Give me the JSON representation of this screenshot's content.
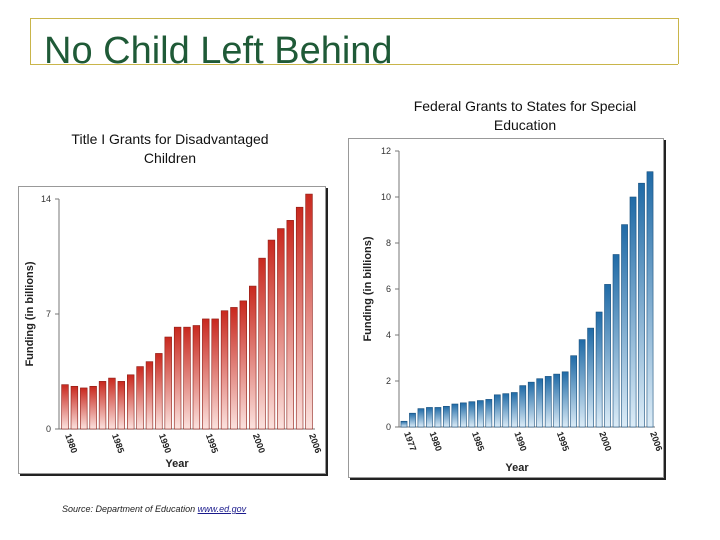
{
  "slide": {
    "title": "No Child Left Behind",
    "source_prefix": "Source: Department of Education",
    "source_link": "www.ed.gov"
  },
  "colors": {
    "title": "#1f5a37",
    "rule": "#c9b54a",
    "red_bar": "#c0392b",
    "blue_bar": "#2a78b8"
  },
  "chart_data": [
    {
      "type": "bar",
      "title": "Title I Grants for Disadvantaged Children",
      "xlabel": "Year",
      "ylabel": "Funding (in billions)",
      "ylim": [
        0,
        14
      ],
      "yticks": [
        0,
        7,
        14
      ],
      "xticks": [
        "1980",
        "1985",
        "1990",
        "1995",
        "2000",
        "2006"
      ],
      "x": [
        1980,
        1981,
        1982,
        1983,
        1984,
        1985,
        1986,
        1987,
        1988,
        1989,
        1990,
        1991,
        1992,
        1993,
        1994,
        1995,
        1996,
        1997,
        1998,
        1999,
        2000,
        2001,
        2002,
        2003,
        2004,
        2005,
        2006
      ],
      "values": [
        2.7,
        2.6,
        2.5,
        2.6,
        2.9,
        3.1,
        2.9,
        3.3,
        3.8,
        4.1,
        4.6,
        5.6,
        6.2,
        6.2,
        6.3,
        6.7,
        6.7,
        7.2,
        7.4,
        7.8,
        8.7,
        10.4,
        11.5,
        12.2,
        12.7,
        13.5,
        14.3
      ],
      "color": "#c0392b"
    },
    {
      "type": "bar",
      "title": "Federal Grants to States for Special Education",
      "xlabel": "Year",
      "ylabel": "Funding (in billions)",
      "ylim": [
        0,
        12
      ],
      "yticks": [
        0,
        2,
        4,
        6,
        8,
        10,
        12
      ],
      "xticks": [
        "1977",
        "1980",
        "1985",
        "1990",
        "1995",
        "2000",
        "2006"
      ],
      "x": [
        1977,
        1978,
        1979,
        1980,
        1981,
        1982,
        1983,
        1984,
        1985,
        1986,
        1987,
        1988,
        1989,
        1990,
        1991,
        1992,
        1993,
        1994,
        1995,
        1996,
        1997,
        1998,
        1999,
        2000,
        2001,
        2002,
        2003,
        2004,
        2005,
        2006
      ],
      "values": [
        0.25,
        0.6,
        0.8,
        0.85,
        0.85,
        0.9,
        1.0,
        1.05,
        1.1,
        1.15,
        1.2,
        1.4,
        1.45,
        1.5,
        1.8,
        1.95,
        2.1,
        2.2,
        2.3,
        2.4,
        3.1,
        3.8,
        4.3,
        5.0,
        6.2,
        7.5,
        8.8,
        10.0,
        10.6,
        11.1
      ],
      "color": "#2a78b8"
    }
  ]
}
